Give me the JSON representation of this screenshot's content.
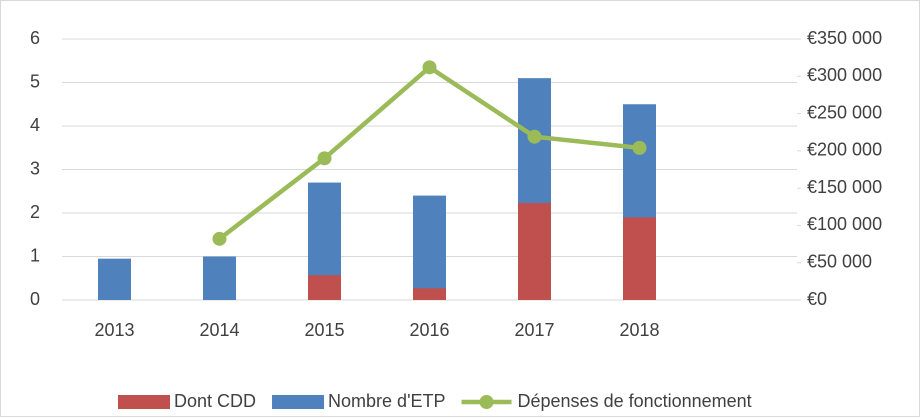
{
  "chart_data": {
    "type": "bar",
    "categories": [
      "2013",
      "2014",
      "2015",
      "2016",
      "2017",
      "2018",
      null
    ],
    "series": [
      {
        "name": "Nombre d'ETP",
        "color": "#4f81bd",
        "values": [
          0.95,
          1.0,
          2.7,
          2.4,
          5.1,
          4.5,
          null
        ]
      },
      {
        "name": "Dont CDD",
        "color": "#c0504d",
        "values": [
          0,
          0,
          0.57,
          0.27,
          2.23,
          1.9,
          null
        ]
      },
      {
        "name": "Dépenses de fonctionnement",
        "color": "#9bbb59",
        "type": "line",
        "axis": "y2",
        "values": [
          null,
          82000,
          190000,
          312000,
          219000,
          204000,
          null
        ]
      }
    ],
    "legend_order": [
      1,
      0,
      2
    ],
    "ylim": [
      0,
      6
    ],
    "yticks": [
      0,
      1,
      2,
      3,
      4,
      5,
      6
    ],
    "y2lim": [
      0,
      350000
    ],
    "y2ticks": [
      {
        "value": 0,
        "label": "€0"
      },
      {
        "value": 50000,
        "label": "€50 000"
      },
      {
        "value": 100000,
        "label": "€100 000"
      },
      {
        "value": 150000,
        "label": "€150 000"
      },
      {
        "value": 200000,
        "label": "€200 000"
      },
      {
        "value": 250000,
        "label": "€250 000"
      },
      {
        "value": 300000,
        "label": "€300 000"
      },
      {
        "value": 350000,
        "label": "€350 000"
      }
    ],
    "grid": true,
    "legend": "bottom",
    "bar_mode": "overlap"
  }
}
